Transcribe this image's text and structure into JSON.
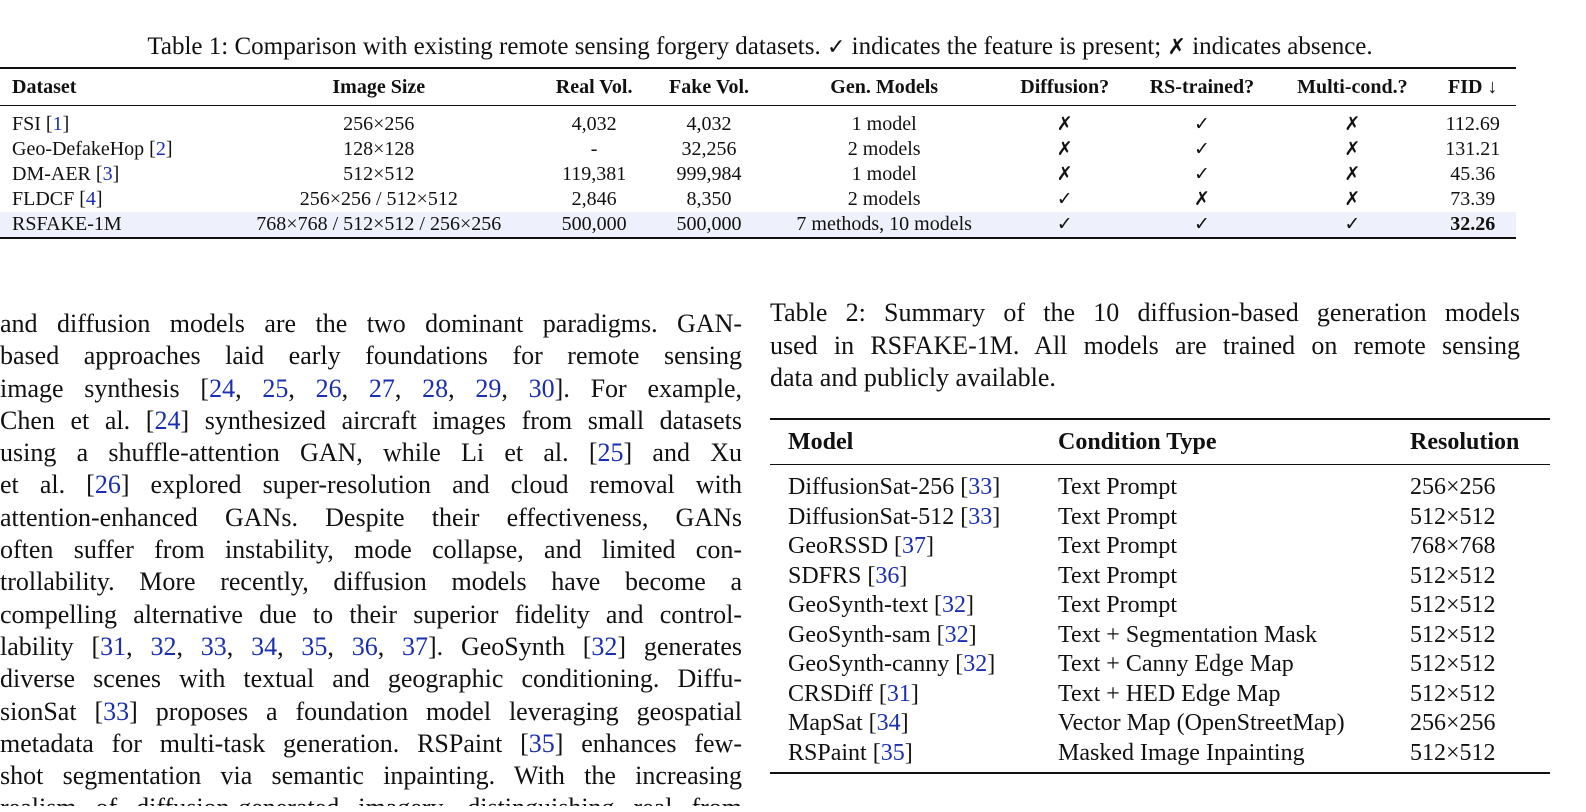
{
  "table1": {
    "caption_prefix": "Table 1: Comparison with existing remote sensing forgery datasets.",
    "check_symbol": "✓",
    "caption_present": "indicates the feature is present;",
    "cross_symbol": "✗",
    "caption_absent": "indicates absence.",
    "headers": [
      "Dataset",
      "Image Size",
      "Real Vol.",
      "Fake Vol.",
      "Gen. Models",
      "Diffusion?",
      "RS-trained?",
      "Multi-cond.?",
      "FID ↓"
    ],
    "rows": [
      {
        "name": "FSI",
        "cite": "1",
        "size": "256×256",
        "real": "4,032",
        "fake": "4,032",
        "gen": "1 model",
        "diffusion": "✗",
        "rs_trained": "✓",
        "multi_cond": "✗",
        "fid": "112.69"
      },
      {
        "name": "Geo-DefakeHop",
        "cite": "2",
        "size": "128×128",
        "real": "-",
        "fake": "32,256",
        "gen": "2 models",
        "diffusion": "✗",
        "rs_trained": "✓",
        "multi_cond": "✗",
        "fid": "131.21"
      },
      {
        "name": "DM-AER",
        "cite": "3",
        "size": "512×512",
        "real": "119,381",
        "fake": "999,984",
        "gen": "1 model",
        "diffusion": "✗",
        "rs_trained": "✓",
        "multi_cond": "✗",
        "fid": "45.36"
      },
      {
        "name": "FLDCF",
        "cite": "4",
        "size": "256×256 / 512×512",
        "real": "2,846",
        "fake": "8,350",
        "gen": "2 models",
        "diffusion": "✓",
        "rs_trained": "✗",
        "multi_cond": "✗",
        "fid": "73.39"
      },
      {
        "name": "RSFAKE-1M",
        "cite": "",
        "size": "768×768 / 512×512 / 256×256",
        "real": "500,000",
        "fake": "500,000",
        "gen": "7 methods, 10 models",
        "diffusion": "✓",
        "rs_trained": "✓",
        "multi_cond": "✓",
        "fid": "32.26"
      }
    ],
    "highlight_color": "#eef0fb"
  },
  "body_lines": [
    [
      {
        "t": "and diffusion models are the two dominant paradigms. GAN-"
      }
    ],
    [
      {
        "t": "based approaches laid early foundations for remote sensing"
      }
    ],
    [
      {
        "t": "image synthesis ["
      },
      {
        "t": "24",
        "c": 1
      },
      {
        "t": ", "
      },
      {
        "t": "25",
        "c": 1
      },
      {
        "t": ", "
      },
      {
        "t": "26",
        "c": 1
      },
      {
        "t": ", "
      },
      {
        "t": "27",
        "c": 1
      },
      {
        "t": ", "
      },
      {
        "t": "28",
        "c": 1
      },
      {
        "t": ", "
      },
      {
        "t": "29",
        "c": 1
      },
      {
        "t": ", "
      },
      {
        "t": "30",
        "c": 1
      },
      {
        "t": "].  For example,"
      }
    ],
    [
      {
        "t": "Chen et al. ["
      },
      {
        "t": "24",
        "c": 1
      },
      {
        "t": "] synthesized aircraft images from small datasets"
      }
    ],
    [
      {
        "t": "using a shuffle-attention GAN, while Li et al. ["
      },
      {
        "t": "25",
        "c": 1
      },
      {
        "t": "] and Xu"
      }
    ],
    [
      {
        "t": "et al. ["
      },
      {
        "t": "26",
        "c": 1
      },
      {
        "t": "] explored super-resolution and cloud removal with"
      }
    ],
    [
      {
        "t": "attention-enhanced GANs. Despite their effectiveness, GANs"
      }
    ],
    [
      {
        "t": "often suffer from instability, mode collapse, and limited con-"
      }
    ],
    [
      {
        "t": "trollability.  More recently, diffusion models have become a"
      }
    ],
    [
      {
        "t": "compelling alternative due to their superior fidelity and control-"
      }
    ],
    [
      {
        "t": "lability ["
      },
      {
        "t": "31",
        "c": 1
      },
      {
        "t": ", "
      },
      {
        "t": "32",
        "c": 1
      },
      {
        "t": ", "
      },
      {
        "t": "33",
        "c": 1
      },
      {
        "t": ", "
      },
      {
        "t": "34",
        "c": 1
      },
      {
        "t": ", "
      },
      {
        "t": "35",
        "c": 1
      },
      {
        "t": ", "
      },
      {
        "t": "36",
        "c": 1
      },
      {
        "t": ", "
      },
      {
        "t": "37",
        "c": 1
      },
      {
        "t": "]. GeoSynth ["
      },
      {
        "t": "32",
        "c": 1
      },
      {
        "t": "] generates"
      }
    ],
    [
      {
        "t": "diverse scenes with textual and geographic conditioning. Diffu-"
      }
    ],
    [
      {
        "t": "sionSat ["
      },
      {
        "t": "33",
        "c": 1
      },
      {
        "t": "] proposes a foundation model leveraging geospatial"
      }
    ],
    [
      {
        "t": "metadata for multi-task generation. RSPaint ["
      },
      {
        "t": "35",
        "c": 1
      },
      {
        "t": "] enhances few-"
      }
    ],
    [
      {
        "t": "shot segmentation via semantic inpainting. With the increasing"
      }
    ],
    [
      {
        "t": "realism of diffusion-generated imagery, distinguishing real from"
      }
    ]
  ],
  "table2": {
    "caption_lines": [
      "Table 2: Summary of the 10 diffusion-based generation models",
      "used in RSFAKE-1M. All models are trained on remote sensing",
      "data and publicly available."
    ],
    "headers": [
      "Model",
      "Condition Type",
      "Resolution"
    ],
    "rows": [
      {
        "model": "DiffusionSat-256",
        "cite": "33",
        "condition": "Text Prompt",
        "resolution": "256×256"
      },
      {
        "model": "DiffusionSat-512",
        "cite": "33",
        "condition": "Text Prompt",
        "resolution": "512×512"
      },
      {
        "model": "GeoRSSD",
        "cite": "37",
        "condition": "Text Prompt",
        "resolution": "768×768"
      },
      {
        "model": "SDFRS",
        "cite": "36",
        "condition": "Text Prompt",
        "resolution": "512×512"
      },
      {
        "model": "GeoSynth-text",
        "cite": "32",
        "condition": "Text Prompt",
        "resolution": "512×512"
      },
      {
        "model": "GeoSynth-sam",
        "cite": "32",
        "condition": "Text + Segmentation Mask",
        "resolution": "512×512"
      },
      {
        "model": "GeoSynth-canny",
        "cite": "32",
        "condition": "Text + Canny Edge Map",
        "resolution": "512×512"
      },
      {
        "model": "CRSDiff",
        "cite": "31",
        "condition": "Text + HED Edge Map",
        "resolution": "512×512"
      },
      {
        "model": "MapSat",
        "cite": "34",
        "condition": "Vector Map (OpenStreetMap)",
        "resolution": "256×256"
      },
      {
        "model": "RSPaint",
        "cite": "35",
        "condition": "Masked Image Inpainting",
        "resolution": "512×512"
      }
    ]
  },
  "colors": {
    "citation": "#1a2fb0",
    "text": "#111111"
  }
}
